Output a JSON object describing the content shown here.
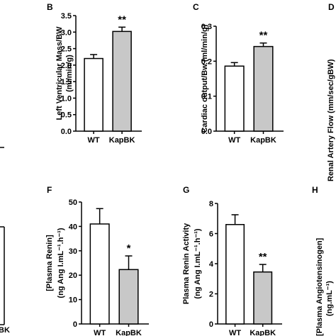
{
  "panels": {
    "B": {
      "letter": "B"
    },
    "C": {
      "letter": "C"
    },
    "D": {
      "letter": "D"
    },
    "F": {
      "letter": "F"
    },
    "G": {
      "letter": "G"
    },
    "H": {
      "letter": "H"
    }
  },
  "partial_labels": {
    "D_ylabel": "Renal Artery Flow (mm/sec/gBW)",
    "H_ylabel_line1": "[Plasma Angiotensinogen]",
    "H_ylabel_line2": "(ng.mL⁻¹)",
    "left_tick_fragment": "BK"
  },
  "colors": {
    "wt_fill": "#ffffff",
    "kapbk_fill": "#c8c8c8",
    "stroke": "#000000"
  },
  "chart_data": [
    {
      "panel": "B",
      "type": "bar",
      "categories": [
        "WT",
        "KapBK"
      ],
      "values": [
        2.2,
        3.02
      ],
      "errors": [
        0.12,
        0.13
      ],
      "significance": [
        "",
        "**"
      ],
      "ylabel_line1": "Left Ventricular Mass/BW",
      "ylabel_line2": "(ml/min/g)",
      "ylim": [
        0,
        3.5
      ],
      "yticks": [
        0.0,
        0.5,
        1.0,
        1.5,
        2.0,
        2.5,
        3.0,
        3.5
      ],
      "ytick_labels": [
        "0.0",
        "0.5",
        "1.0",
        "1.5",
        "2.0",
        "2.5",
        "3.0",
        "3.5"
      ]
    },
    {
      "panel": "C",
      "type": "bar",
      "categories": [
        "WT",
        "KapBK"
      ],
      "values": [
        0.186,
        0.242
      ],
      "errors": [
        0.01,
        0.01
      ],
      "significance": [
        "",
        "**"
      ],
      "ylabel_line1": "Cardiac output/Bw (ml/min/g)",
      "ylabel_line2": "",
      "ylim": [
        0,
        0.3
      ],
      "yticks": [
        0.0,
        0.1,
        0.2,
        0.3
      ],
      "ytick_labels": [
        "0.0",
        "0.1",
        "0.2",
        "0.3"
      ]
    },
    {
      "panel": "F",
      "type": "bar",
      "categories": [
        "WT",
        "KapBK"
      ],
      "values": [
        41,
        22.3
      ],
      "errors": [
        6.3,
        5.6
      ],
      "significance": [
        "",
        "*"
      ],
      "ylabel_line1": "[Plasma Renin]",
      "ylabel_line2": "(ng Ang I.mL⁻¹.h⁻¹)",
      "ylim": [
        0,
        50
      ],
      "yticks": [
        0,
        10,
        20,
        30,
        40,
        50
      ],
      "ytick_labels": [
        "0",
        "10",
        "20",
        "30",
        "40",
        "50"
      ]
    },
    {
      "panel": "G",
      "type": "bar",
      "categories": [
        "WT",
        "KapBK"
      ],
      "values": [
        6.6,
        3.45
      ],
      "errors": [
        0.65,
        0.5
      ],
      "significance": [
        "",
        "**"
      ],
      "ylabel_line1": "Plasma Renin Activity",
      "ylabel_line2": "(ng Ang I.mL⁻¹.h⁻¹)",
      "ylim": [
        0,
        8
      ],
      "yticks": [
        0,
        2,
        4,
        6,
        8
      ],
      "ytick_labels": [
        "0",
        "2",
        "4",
        "6",
        "8"
      ]
    }
  ]
}
